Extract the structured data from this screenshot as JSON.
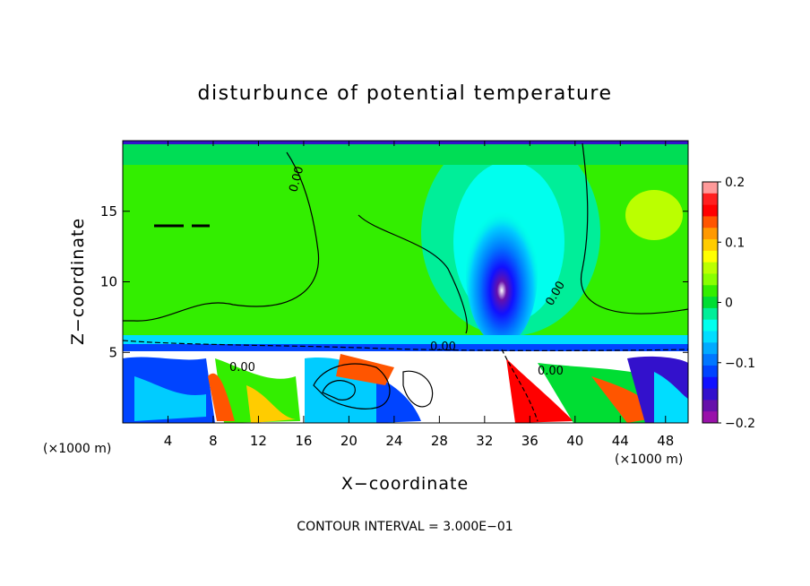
{
  "chart_data": {
    "type": "heatmap",
    "title": "disturbunce of potential temperature",
    "xlabel": "X−coordinate",
    "ylabel": "Z−coordinate",
    "x_unit_label": "(×1000 m)",
    "y_unit_label": "(×1000 m)",
    "xlim": [
      0,
      50
    ],
    "ylim": [
      0,
      20
    ],
    "x_ticks": [
      4,
      8,
      12,
      16,
      20,
      24,
      28,
      32,
      36,
      40,
      44,
      48
    ],
    "x_tick_labels": [
      "4",
      "8",
      "12",
      "16",
      "20",
      "24",
      "28",
      "32",
      "36",
      "40",
      "44",
      "48"
    ],
    "y_ticks": [
      5,
      10,
      15
    ],
    "y_tick_labels": [
      "5",
      "10",
      "15"
    ],
    "colorbar": {
      "range": [
        -0.2,
        0.2
      ],
      "ticks": [
        0.2,
        0.1,
        0,
        -0.1,
        -0.2
      ],
      "tick_labels": [
        "0.2",
        "0.1",
        "0",
        "−0.1",
        "−0.2"
      ],
      "colors": [
        "#ff9a9a",
        "#ff2020",
        "#ff0000",
        "#ff5500",
        "#ff9900",
        "#ffcc00",
        "#ffff00",
        "#bbff00",
        "#88ff00",
        "#33ee00",
        "#00dd33",
        "#00ee99",
        "#00ffee",
        "#00ddff",
        "#00aaff",
        "#0077ff",
        "#0044ff",
        "#1111ff",
        "#3311cc",
        "#6611aa",
        "#9911aa"
      ]
    },
    "contour_labels": [
      {
        "text": "0.00",
        "x": 15.8,
        "z": 16.0
      },
      {
        "text": "0.00",
        "x": 28.5,
        "z": 5.4
      },
      {
        "text": "0.00",
        "x": 38.5,
        "z": 9.3
      },
      {
        "text": "0.00",
        "x": 38.0,
        "z": 3.7
      },
      {
        "text": "0.00",
        "x": 10.5,
        "z": 4.3
      }
    ],
    "footer": "CONTOUR INTERVAL = 3.000E−01"
  }
}
